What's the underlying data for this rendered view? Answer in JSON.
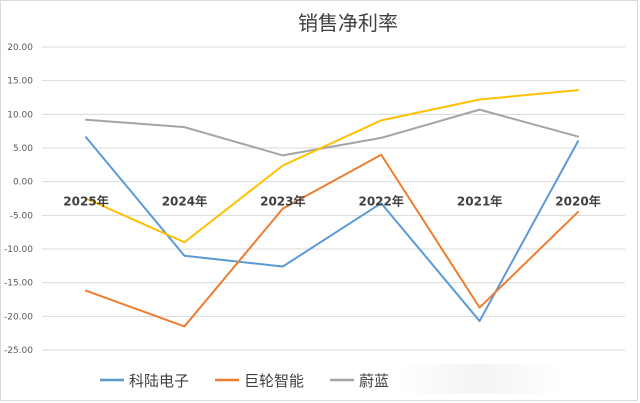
{
  "chart_data": {
    "type": "line",
    "title": "销售净利率",
    "categories": [
      "2025年",
      "2024年",
      "2023年",
      "2022年",
      "2021年",
      "2020年"
    ],
    "ylim": [
      -25,
      20
    ],
    "yticks": [
      "20.00",
      "15.00",
      "10.00",
      "5.00",
      "0.00",
      "-5.00",
      "-10.00",
      "-15.00",
      "-20.00",
      "-25.00"
    ],
    "grid": true,
    "legend_position": "bottom",
    "series": [
      {
        "name": "科陆电子",
        "color": "#5B9BD5",
        "values": [
          6.6,
          -11.0,
          -12.6,
          -3.2,
          -20.7,
          6.0
        ]
      },
      {
        "name": "巨轮智能",
        "color": "#ED7D31",
        "values": [
          -16.2,
          -21.5,
          -4.0,
          4.0,
          -18.7,
          -4.5
        ]
      },
      {
        "name": "蔚蓝",
        "color": "#A5A5A5",
        "values": [
          9.2,
          8.1,
          3.9,
          6.5,
          10.7,
          6.7
        ]
      },
      {
        "name": "",
        "color": "#FFC000",
        "values": [
          -2.5,
          -9.0,
          2.4,
          9.1,
          12.2,
          13.6
        ]
      }
    ]
  }
}
